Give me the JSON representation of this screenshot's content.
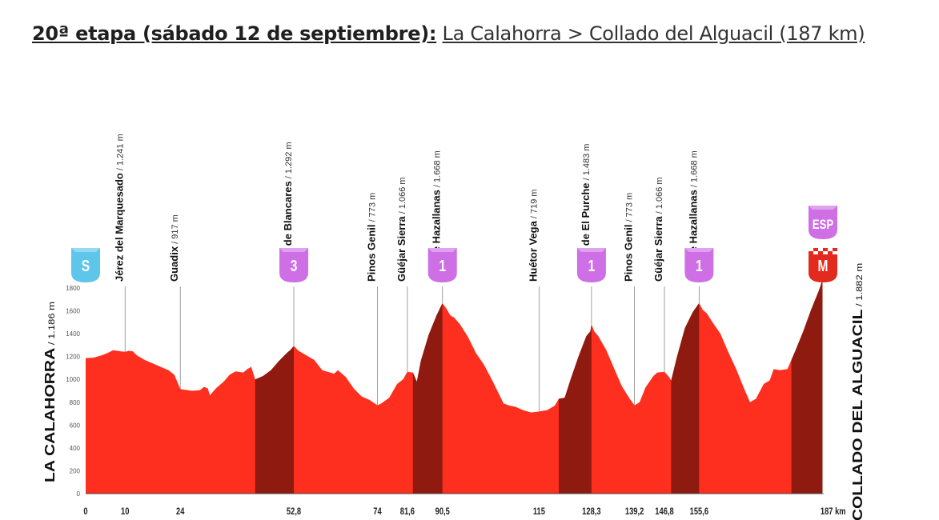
{
  "title": {
    "stage": "20ª etapa (sábado 12 de septiembre):",
    "route": "La Calahorra > Collado del Alguacil (187 km)"
  },
  "chart_data": {
    "type": "area",
    "title": "20ª etapa (sábado 12 de septiembre): La Calahorra > Collado del Alguacil (187 km)",
    "x_unit": "km",
    "y_unit": "m",
    "ylim": [
      0,
      1800
    ],
    "xlim": [
      0,
      187
    ],
    "yticks": [
      0,
      200,
      400,
      600,
      800,
      1000,
      1200,
      1400,
      1600,
      1800
    ],
    "ytick_labels": [
      "0",
      "200",
      "400",
      "600",
      "800",
      "1000",
      "1200",
      "1400",
      "1600",
      "1800"
    ],
    "grid": true,
    "start": {
      "name": "LA CALAHORRA",
      "elev": "/ 1.186 m"
    },
    "finish": {
      "name": "COLLADO DEL ALGUACIL",
      "elev": "/ 1.882 m"
    },
    "km_labels": [
      {
        "km": 0,
        "label": "0"
      },
      {
        "km": 10,
        "label": "10"
      },
      {
        "km": 24,
        "label": "24"
      },
      {
        "km": 52.8,
        "label": "52,8"
      },
      {
        "km": 74,
        "label": "74"
      },
      {
        "km": 81.6,
        "label": "81,6"
      },
      {
        "km": 90.5,
        "label": "90,5"
      },
      {
        "km": 115,
        "label": "115"
      },
      {
        "km": 128.3,
        "label": "128,3"
      },
      {
        "km": 139.2,
        "label": "139,2"
      },
      {
        "km": 146.8,
        "label": "146,8"
      },
      {
        "km": 155.6,
        "label": "155,6"
      },
      {
        "km": 187,
        "label": "187 km"
      }
    ],
    "waypoints": [
      {
        "km": 10,
        "name": "Jérez del Marquesado",
        "elev": "/ 1.241 m",
        "alt": 1241
      },
      {
        "km": 24,
        "name": "Guadix",
        "elev": "/ 917 m",
        "alt": 917
      },
      {
        "km": 52.8,
        "name": "Puerto de Blancares",
        "elev": "/ 1.292 m",
        "alt": 1292
      },
      {
        "km": 74,
        "name": "Pinos Genil",
        "elev": "/ 773 m",
        "alt": 773
      },
      {
        "km": 81.6,
        "name": "Güéjar Sierra",
        "elev": "/ 1.066 m",
        "alt": 1066
      },
      {
        "km": 90.5,
        "name": "Alto de Hazallanas",
        "elev": "/ 1.668 m",
        "alt": 1668
      },
      {
        "km": 115,
        "name": "Huétor Vega",
        "elev": "/ 719 m",
        "alt": 719
      },
      {
        "km": 128.3,
        "name": "Puerto de El Purche",
        "elev": "/ 1.483 m",
        "alt": 1483
      },
      {
        "km": 139.2,
        "name": "Pinos Genil",
        "elev": "/ 773 m",
        "alt": 773
      },
      {
        "km": 146.8,
        "name": "Güéjar Sierra",
        "elev": "/ 1.066 m",
        "alt": 1066
      },
      {
        "km": 155.6,
        "name": "Alto de Hazallanas",
        "elev": "/ 1.668 m",
        "alt": 1668
      }
    ],
    "markers": [
      {
        "km": 0,
        "type": "start",
        "label": "S",
        "color": "#5ec6ea"
      },
      {
        "km": 52.8,
        "type": "climb",
        "label": "3",
        "color": "#cf6fe6"
      },
      {
        "km": 90.5,
        "type": "climb",
        "label": "1",
        "color": "#cf6fe6"
      },
      {
        "km": 128.3,
        "type": "climb",
        "label": "1",
        "color": "#cf6fe6"
      },
      {
        "km": 155.6,
        "type": "climb",
        "label": "1",
        "color": "#cf6fe6"
      },
      {
        "km": 187,
        "type": "sprint",
        "label": "ESP",
        "color": "#cf6fe6"
      },
      {
        "km": 187,
        "type": "finish",
        "label": "M",
        "color": "#e22a1e"
      }
    ],
    "climbs": [
      [
        43,
        52.8
      ],
      [
        83,
        90.5
      ],
      [
        120,
        128.3
      ],
      [
        148.5,
        155.6
      ],
      [
        179,
        187
      ]
    ],
    "profile": [
      [
        0,
        1186
      ],
      [
        2,
        1190
      ],
      [
        4,
        1210
      ],
      [
        5.5,
        1230
      ],
      [
        7,
        1255
      ],
      [
        8,
        1250
      ],
      [
        9,
        1245
      ],
      [
        10,
        1241
      ],
      [
        11,
        1250
      ],
      [
        12,
        1245
      ],
      [
        13,
        1210
      ],
      [
        15,
        1170
      ],
      [
        17,
        1140
      ],
      [
        19,
        1110
      ],
      [
        21,
        1080
      ],
      [
        22.5,
        1040
      ],
      [
        24,
        917
      ],
      [
        25,
        910
      ],
      [
        27,
        900
      ],
      [
        29,
        905
      ],
      [
        30,
        935
      ],
      [
        31,
        920
      ],
      [
        31.5,
        860
      ],
      [
        33,
        920
      ],
      [
        35,
        980
      ],
      [
        36.5,
        1040
      ],
      [
        38,
        1070
      ],
      [
        40,
        1060
      ],
      [
        41,
        1090
      ],
      [
        42,
        1110
      ],
      [
        43,
        1000
      ],
      [
        45,
        1030
      ],
      [
        47,
        1080
      ],
      [
        49,
        1160
      ],
      [
        51,
        1230
      ],
      [
        52,
        1260
      ],
      [
        52.8,
        1292
      ],
      [
        54,
        1250
      ],
      [
        56,
        1210
      ],
      [
        58,
        1170
      ],
      [
        60,
        1080
      ],
      [
        62,
        1060
      ],
      [
        63,
        1050
      ],
      [
        64,
        1080
      ],
      [
        66,
        1020
      ],
      [
        68,
        920
      ],
      [
        70,
        850
      ],
      [
        72,
        820
      ],
      [
        74,
        773
      ],
      [
        75,
        790
      ],
      [
        77,
        840
      ],
      [
        79,
        960
      ],
      [
        80.5,
        1000
      ],
      [
        81.6,
        1066
      ],
      [
        83,
        1060
      ],
      [
        84,
        980
      ],
      [
        85,
        1160
      ],
      [
        87,
        1390
      ],
      [
        89,
        1560
      ],
      [
        90.5,
        1668
      ],
      [
        91.5,
        1620
      ],
      [
        92.5,
        1560
      ],
      [
        93.5,
        1540
      ],
      [
        95,
        1480
      ],
      [
        97,
        1370
      ],
      [
        99,
        1230
      ],
      [
        101,
        1130
      ],
      [
        103,
        1000
      ],
      [
        105,
        860
      ],
      [
        106,
        790
      ],
      [
        107.5,
        770
      ],
      [
        109,
        760
      ],
      [
        111,
        730
      ],
      [
        113,
        710
      ],
      [
        115,
        719
      ],
      [
        117,
        730
      ],
      [
        119,
        770
      ],
      [
        120,
        830
      ],
      [
        121.5,
        840
      ],
      [
        123,
        1000
      ],
      [
        125,
        1200
      ],
      [
        127,
        1380
      ],
      [
        128,
        1420
      ],
      [
        128.3,
        1483
      ],
      [
        129,
        1420
      ],
      [
        130,
        1380
      ],
      [
        132,
        1260
      ],
      [
        134,
        1100
      ],
      [
        136,
        940
      ],
      [
        138,
        830
      ],
      [
        139.2,
        773
      ],
      [
        140.5,
        800
      ],
      [
        142,
        930
      ],
      [
        144,
        1030
      ],
      [
        145,
        1060
      ],
      [
        146.8,
        1066
      ],
      [
        148,
        1020
      ],
      [
        148.5,
        990
      ],
      [
        150,
        1200
      ],
      [
        152,
        1450
      ],
      [
        154,
        1590
      ],
      [
        155.6,
        1668
      ],
      [
        156.5,
        1610
      ],
      [
        157.5,
        1580
      ],
      [
        159,
        1500
      ],
      [
        161,
        1400
      ],
      [
        163,
        1240
      ],
      [
        165,
        1090
      ],
      [
        167,
        920
      ],
      [
        168.5,
        800
      ],
      [
        170,
        830
      ],
      [
        172,
        960
      ],
      [
        173.5,
        990
      ],
      [
        174.5,
        1090
      ],
      [
        176,
        1080
      ],
      [
        178,
        1090
      ],
      [
        180,
        1250
      ],
      [
        182,
        1420
      ],
      [
        184,
        1610
      ],
      [
        186,
        1780
      ],
      [
        187,
        1882
      ]
    ]
  }
}
